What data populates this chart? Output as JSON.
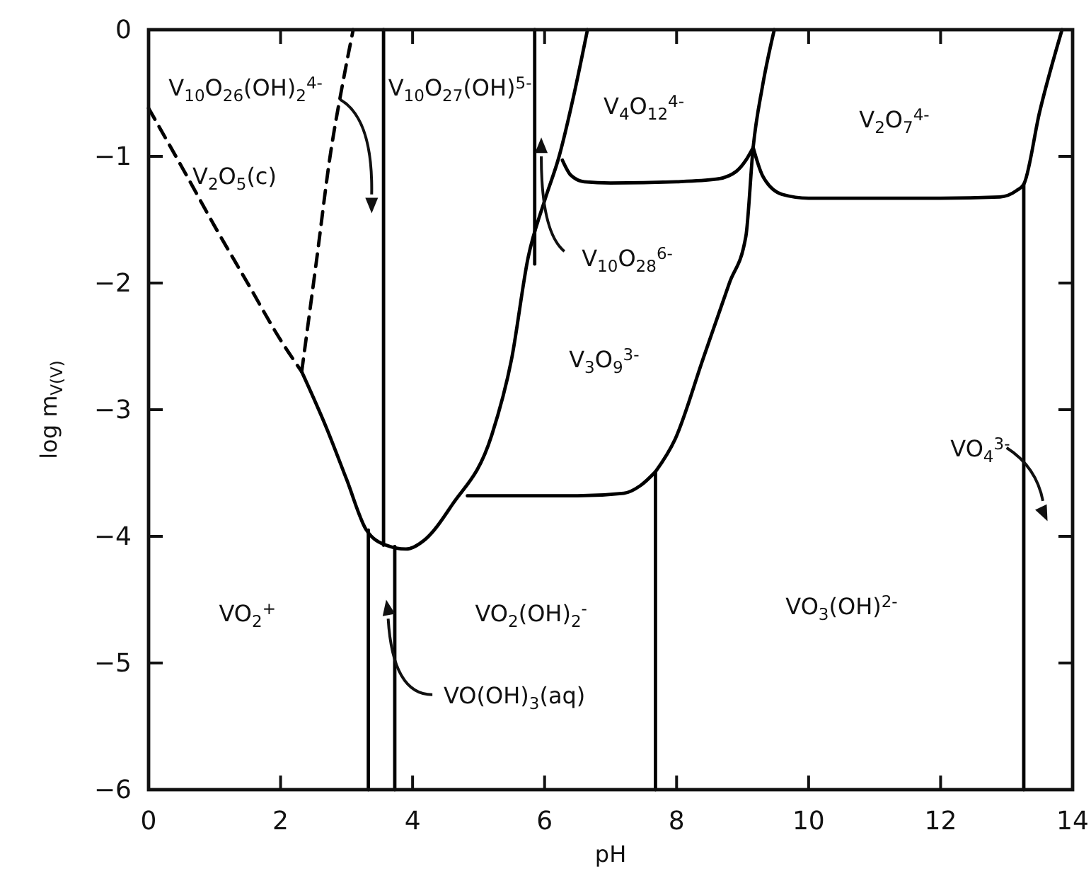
{
  "chart_data": {
    "type": "line",
    "xlabel": "pH",
    "ylabel": "log m$_{V(V)}$",
    "xlim": [
      0,
      14
    ],
    "ylim": [
      -6,
      0
    ],
    "xticks": [
      0,
      2,
      4,
      6,
      8,
      10,
      12,
      14
    ],
    "yticks": [
      0,
      -1,
      -2,
      -3,
      -4,
      -5,
      -6
    ],
    "grid": false,
    "series": [
      {
        "color": "#000000",
        "line_style": "dashed",
        "x": [
          0,
          0.5,
          1.0,
          1.5,
          2.0,
          2.32
        ],
        "values": [
          -0.62,
          -1.08,
          -1.55,
          -2.0,
          -2.45,
          -2.7
        ]
      },
      {
        "color": "#000000",
        "line_style": "dashed",
        "x": [
          2.32,
          2.55,
          2.75,
          2.95,
          3.1
        ],
        "values": [
          -2.7,
          -1.8,
          -1.0,
          -0.4,
          0
        ]
      },
      {
        "color": "#000000",
        "line_style": "solid",
        "x": [
          2.32,
          2.7,
          3.0,
          3.3,
          3.6,
          3.9,
          4.2,
          4.6,
          5.2,
          5.5,
          5.75,
          6.0,
          6.22,
          6.45,
          6.65
        ],
        "values": [
          -2.7,
          -3.15,
          -3.55,
          -3.95,
          -4.07,
          -4.1,
          -4.02,
          -3.75,
          -3.2,
          -2.6,
          -1.8,
          -1.35,
          -1.0,
          -0.5,
          0
        ]
      },
      {
        "color": "#000000",
        "line_style": "solid",
        "x": [
          3.56,
          3.56
        ],
        "values": [
          0,
          -4.07
        ]
      },
      {
        "color": "#000000",
        "line_style": "solid",
        "x": [
          3.33,
          3.33
        ],
        "values": [
          -3.95,
          -6
        ]
      },
      {
        "color": "#000000",
        "line_style": "solid",
        "x": [
          3.73,
          3.73
        ],
        "values": [
          -4.08,
          -6
        ]
      },
      {
        "color": "#000000",
        "line_style": "solid",
        "x": [
          5.85,
          5.85
        ],
        "values": [
          0,
          -1.85
        ]
      },
      {
        "color": "#000000",
        "line_style": "solid",
        "x": [
          4.83,
          5.5,
          6.5,
          7.2,
          7.45,
          7.68
        ],
        "values": [
          -3.68,
          -3.68,
          -3.68,
          -3.66,
          -3.6,
          -3.49
        ]
      },
      {
        "color": "#000000",
        "line_style": "solid",
        "x": [
          7.68,
          7.68
        ],
        "values": [
          -3.49,
          -6
        ]
      },
      {
        "color": "#000000",
        "line_style": "solid",
        "x": [
          7.68,
          7.98,
          8.4,
          8.8,
          9.05,
          9.16,
          9.3,
          9.48
        ],
        "values": [
          -3.49,
          -3.23,
          -2.6,
          -2.0,
          -1.63,
          -0.93,
          -0.45,
          0
        ]
      },
      {
        "color": "#000000",
        "line_style": "solid",
        "x": [
          6.27,
          6.4,
          6.6,
          7.0,
          8.0,
          8.6,
          8.9,
          9.05,
          9.16
        ],
        "values": [
          -1.03,
          -1.15,
          -1.2,
          -1.21,
          -1.2,
          -1.18,
          -1.12,
          -1.03,
          -0.93
        ]
      },
      {
        "color": "#000000",
        "line_style": "solid",
        "x": [
          9.16,
          9.3,
          9.6,
          10.0,
          11.0,
          12.0,
          12.9,
          13.15,
          13.26,
          13.5,
          13.84
        ],
        "values": [
          -0.93,
          -1.15,
          -1.3,
          -1.33,
          -1.33,
          -1.33,
          -1.32,
          -1.27,
          -1.22,
          -0.65,
          0
        ]
      },
      {
        "color": "#000000",
        "line_style": "solid",
        "x": [
          13.26,
          13.26
        ],
        "values": [
          -1.22,
          -6
        ]
      }
    ],
    "annotations": [
      "V$_{10}$O$_{26}$(OH)$_{2}$$^{4-}$",
      "V$_{2}$O$_{5}$(c)",
      "V$_{10}$O$_{27}$(OH)$^{5-}$",
      "V$_{4}$O$_{12}$$^{4-}$",
      "V$_{2}$O$_{7}$$^{4-}$",
      "V$_{10}$O$_{28}$$^{6-}$",
      "V$_{3}$O$_{9}$$^{3-}$",
      "VO$_{4}$$^{3-}$",
      "VO$_{2}$$^{+}$",
      "VO$_{2}$(OH)$_{2}$$^{-}$",
      "VO$_{3}$(OH)$^{2-}$",
      "VO(OH)$_{3}$(aq)"
    ]
  }
}
